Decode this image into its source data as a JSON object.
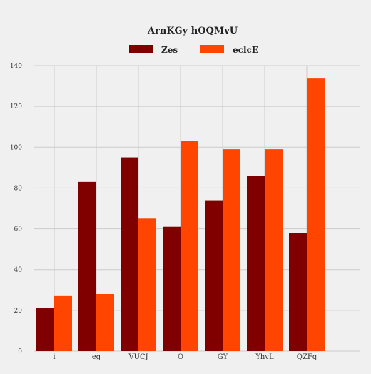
{
  "chart_data": {
    "type": "bar",
    "title": "ArnKGy hOQMvU",
    "xlabel": "",
    "ylabel": "",
    "categories": [
      "i",
      "eg",
      "VUCJ",
      "O",
      "GY",
      "YhvL",
      "QZFq"
    ],
    "series": [
      {
        "name": "Zes",
        "color": "#800000",
        "values": [
          21,
          83,
          95,
          61,
          74,
          86,
          58
        ]
      },
      {
        "name": "eclcE",
        "color": "#ff4500",
        "values": [
          27,
          28,
          65,
          103,
          99,
          99,
          134
        ]
      }
    ],
    "ylim": [
      0,
      140
    ],
    "yticks": [
      0,
      20,
      40,
      60,
      80,
      100,
      120,
      140
    ],
    "grid": true,
    "legend_position": "top-center"
  }
}
